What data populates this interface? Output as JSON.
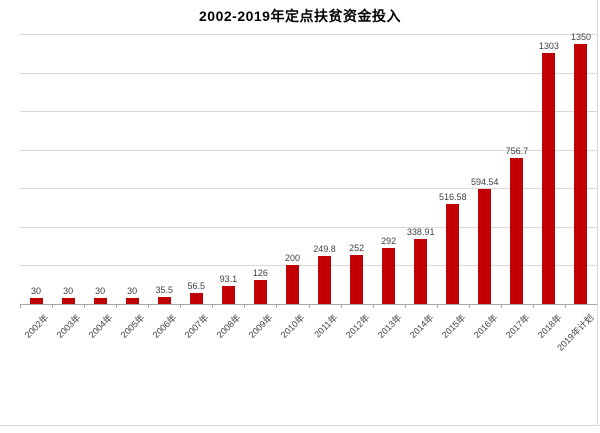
{
  "chart_data": {
    "type": "bar",
    "title": "2002-2019年定点扶贫资金投入",
    "categories": [
      "2002年",
      "2003年",
      "2004年",
      "2005年",
      "2006年",
      "2007年",
      "2008年",
      "2009年",
      "2010年",
      "2011年",
      "2012年",
      "2013年",
      "2014年",
      "2015年",
      "2016年",
      "2017年",
      "2018年",
      "2019年计划"
    ],
    "values": [
      30,
      30,
      30,
      30,
      35.5,
      56.5,
      93.1,
      126,
      200,
      249.8,
      252,
      292,
      338.91,
      516.58,
      594.54,
      756.7,
      1303,
      1350
    ],
    "data_labels": [
      "30",
      "30",
      "30",
      "30",
      "35.5",
      "56.5",
      "93.1",
      "126",
      "200",
      "249.8",
      "252",
      "292",
      "338.91",
      "516.58",
      "594.54",
      "756.7",
      "1303",
      "1350"
    ],
    "xlabel": "",
    "ylabel": "",
    "ylim": [
      0,
      1400
    ],
    "gridline_step": 200,
    "grid": true,
    "y_tick_labels_visible": false,
    "legend": "none",
    "colors": {
      "bar": "#c00000",
      "gridline": "#d9d9d9",
      "axis": "#a6a6a6",
      "data_label": "#404040",
      "category_label": "#3f3f3f",
      "title": "#000000",
      "frame": "#d9d9d9"
    }
  }
}
